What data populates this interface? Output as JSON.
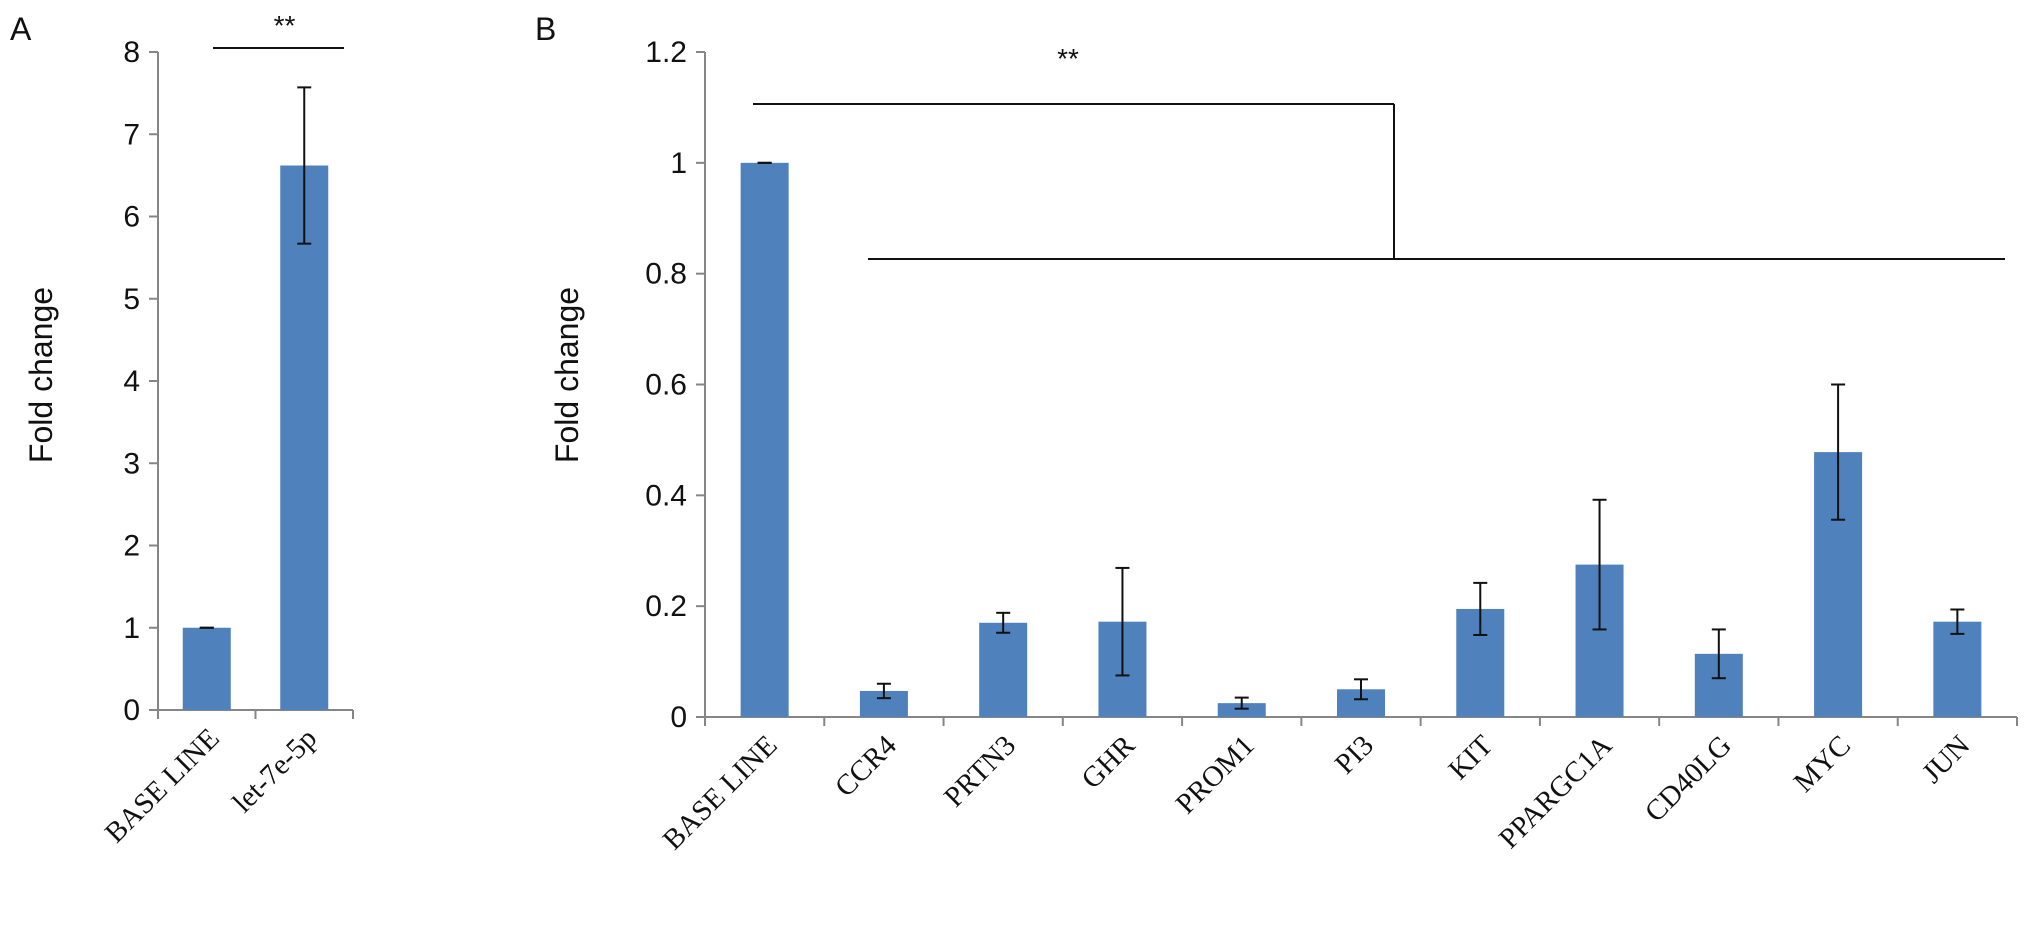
{
  "panels": {
    "a": {
      "letter": "A"
    },
    "b": {
      "letter": "B"
    }
  },
  "colors": {
    "bar": "#4f81bd",
    "axis": "#868686",
    "ink": "#111111"
  },
  "chart_data": [
    {
      "type": "bar",
      "panel": "A",
      "categories": [
        "BASE LINE",
        "let-7e-5p"
      ],
      "values": [
        1.0,
        6.62
      ],
      "errors": [
        0.0,
        0.95
      ],
      "ylabel": "Fold change",
      "ylim": [
        0,
        8
      ],
      "yticks": [
        0,
        1,
        2,
        3,
        4,
        5,
        6,
        7,
        8
      ],
      "grid": false,
      "significance": {
        "label": "**",
        "from": 0,
        "to": 1
      }
    },
    {
      "type": "bar",
      "panel": "B",
      "categories": [
        "BASE LINE",
        "CCR4",
        "PRTN3",
        "GHR",
        "PROM1",
        "PI3",
        "KIT",
        "PPARGC1A",
        "CD40LG",
        "MYC",
        "JUN"
      ],
      "values": [
        1.0,
        0.047,
        0.17,
        0.172,
        0.025,
        0.05,
        0.195,
        0.275,
        0.114,
        0.478,
        0.172
      ],
      "errors": [
        0.0,
        0.013,
        0.018,
        0.097,
        0.01,
        0.018,
        0.047,
        0.117,
        0.044,
        0.122,
        0.022
      ],
      "ylabel": "Fold change",
      "ylim": [
        0,
        1.2
      ],
      "yticks": [
        "0",
        "0.2",
        "0.4",
        "0.6",
        "0.8",
        "1",
        "1.2"
      ],
      "grid": false,
      "significance": {
        "label": "**",
        "from": 0,
        "to": [
          1,
          10
        ]
      }
    }
  ]
}
